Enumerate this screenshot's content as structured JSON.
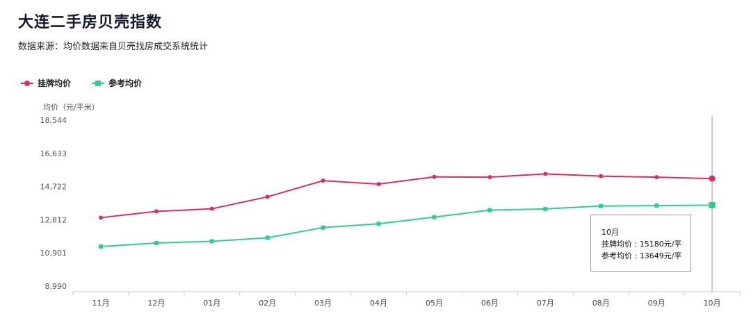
{
  "title": "大连二手房贝壳指数",
  "subtitle": "数据来源：均价数据来自贝壳找房成交系统统计",
  "chart_data": {
    "type": "line",
    "ylabel": "均价（元/平米）",
    "yticks": [
      "18,544",
      "16,633",
      "14,722",
      "12,812",
      "10,901",
      "8,990"
    ],
    "ylim": [
      8990,
      18544
    ],
    "categories": [
      "11月",
      "12月",
      "01月",
      "02月",
      "03月",
      "04月",
      "05月",
      "06月",
      "07月",
      "08月",
      "09月",
      "10月"
    ],
    "series": [
      {
        "name": "挂牌均价",
        "color": "#d62d5f",
        "marker": "circle",
        "values": [
          12930,
          13290,
          13440,
          14130,
          15060,
          14860,
          15280,
          15260,
          15450,
          15320,
          15260,
          15180
        ]
      },
      {
        "name": "参考均价",
        "color": "#2ecc8f",
        "marker": "square",
        "values": [
          11270,
          11470,
          11570,
          11770,
          12360,
          12580,
          12960,
          13360,
          13430,
          13600,
          13620,
          13649
        ]
      }
    ],
    "grid": false,
    "legend_position": "top-left"
  },
  "tooltip": {
    "month": "10月",
    "line1": "挂牌均价 : 15180元/平",
    "line2": "参考均价 : 13649元/平"
  }
}
